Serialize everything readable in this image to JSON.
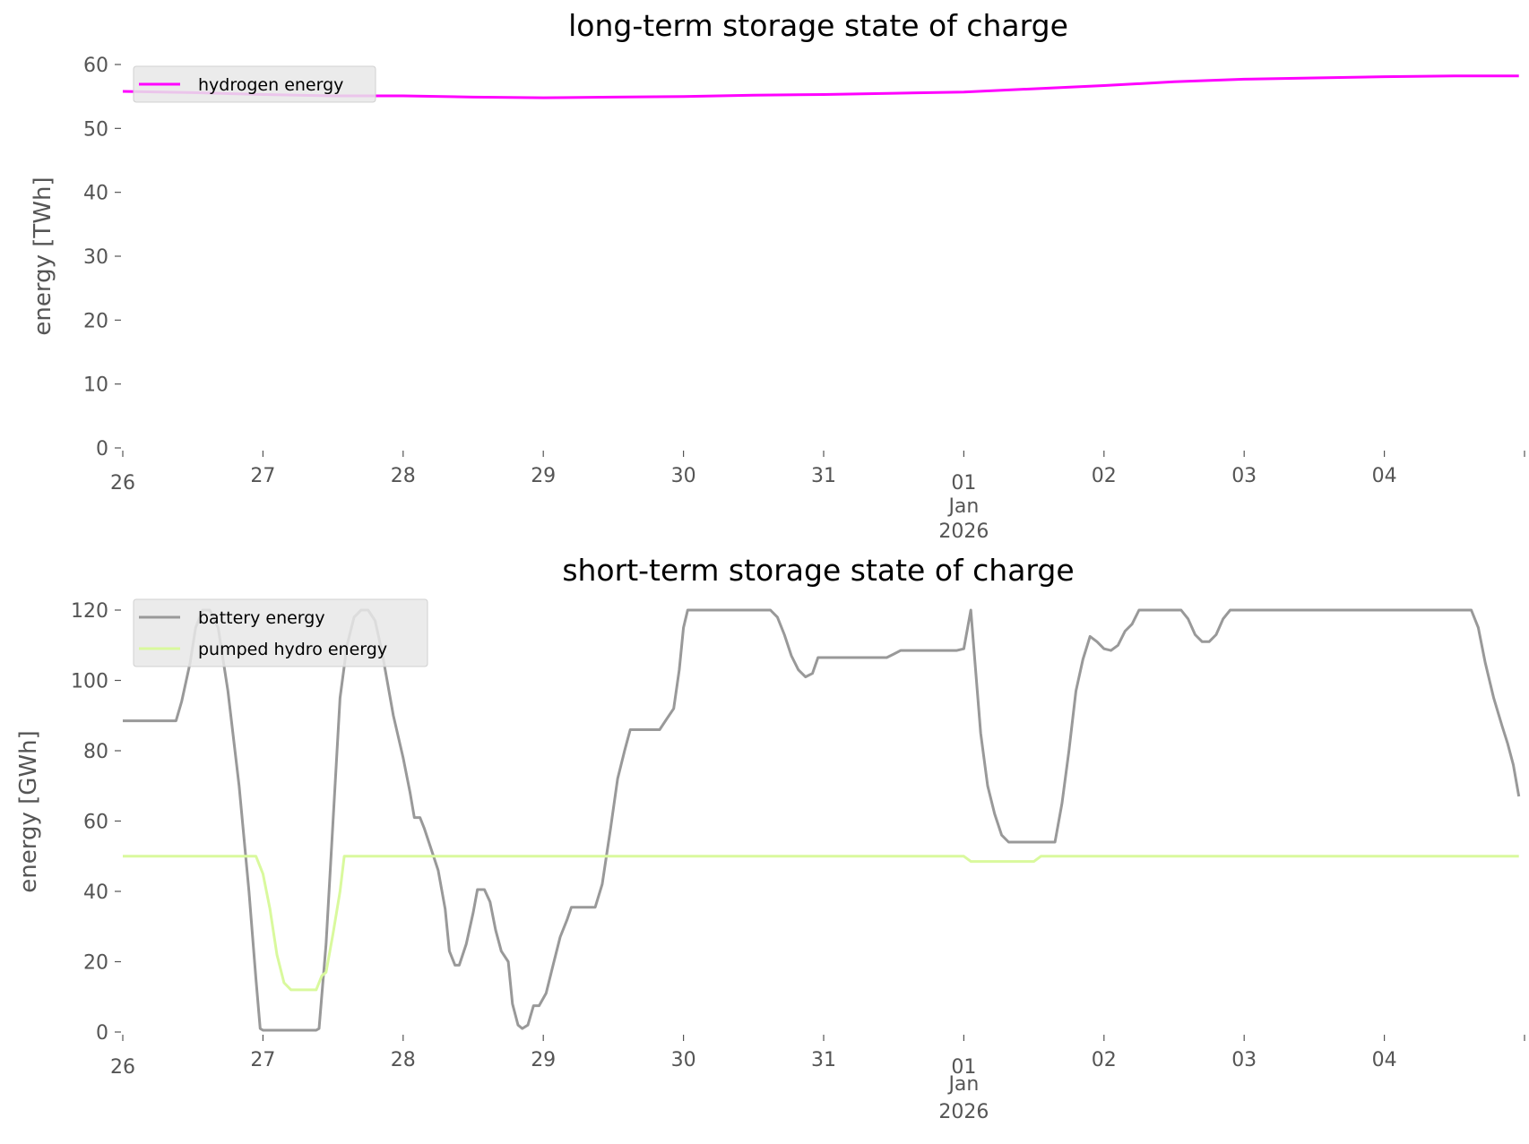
{
  "chart_data": [
    {
      "type": "line",
      "title": "long-term storage state of charge",
      "xlabel": "",
      "ylabel": "energy [TWh]",
      "ylim": [
        0,
        60
      ],
      "yticks": [
        "0",
        "10",
        "20",
        "30",
        "40",
        "50",
        "60"
      ],
      "xticks": [
        "26",
        "27",
        "28",
        "29",
        "30",
        "31",
        "01",
        "02",
        "03",
        "04",
        ""
      ],
      "xtick_sub": [
        "Jan",
        "2026"
      ],
      "x_unit": "days since 2025-12-26",
      "xlim": [
        0,
        9.96
      ],
      "legend_position": "top-left",
      "series": [
        {
          "name": "hydrogen energy",
          "color": "#ff00ff",
          "x": [
            0,
            0.5,
            1,
            1.5,
            2,
            2.5,
            3,
            3.5,
            4,
            4.5,
            5,
            5.5,
            6,
            6.5,
            7,
            7.5,
            8,
            8.5,
            9,
            9.5,
            9.96
          ],
          "y": [
            55.8,
            55.6,
            55.3,
            55.1,
            55.1,
            54.9,
            54.8,
            54.9,
            55.0,
            55.2,
            55.3,
            55.5,
            55.7,
            56.2,
            56.7,
            57.3,
            57.7,
            57.9,
            58.1,
            58.2,
            58.2
          ]
        }
      ]
    },
    {
      "type": "line",
      "title": "short-term storage state of charge",
      "xlabel": "",
      "ylabel": "energy [GWh]",
      "ylim": [
        0,
        120
      ],
      "yticks": [
        "0",
        "20",
        "40",
        "60",
        "80",
        "100",
        "120"
      ],
      "xticks": [
        "26",
        "27",
        "28",
        "29",
        "30",
        "31",
        "01",
        "02",
        "03",
        "04",
        ""
      ],
      "xtick_sub": [
        "Jan",
        "2026"
      ],
      "x_unit": "days since 2025-12-26",
      "xlim": [
        0,
        9.96
      ],
      "legend_position": "top-left",
      "series": [
        {
          "name": "battery energy",
          "color": "#999999",
          "x": [
            0,
            0.38,
            0.42,
            0.48,
            0.52,
            0.57,
            0.62,
            0.68,
            0.75,
            0.83,
            0.9,
            0.95,
            0.98,
            1.0,
            1.38,
            1.4,
            1.45,
            1.5,
            1.55,
            1.6,
            1.65,
            1.7,
            1.75,
            1.8,
            1.85,
            1.93,
            2.0,
            2.05,
            2.08,
            2.12,
            2.15,
            2.2,
            2.25,
            2.3,
            2.33,
            2.37,
            2.4,
            2.45,
            2.5,
            2.53,
            2.58,
            2.62,
            2.66,
            2.7,
            2.75,
            2.78,
            2.82,
            2.85,
            2.89,
            2.93,
            2.97,
            3.02,
            3.07,
            3.12,
            3.17,
            3.2,
            3.37,
            3.42,
            3.48,
            3.53,
            3.58,
            3.62,
            3.83,
            3.88,
            3.93,
            3.97,
            4.0,
            4.03,
            4.62,
            4.67,
            4.72,
            4.77,
            4.82,
            4.87,
            4.92,
            4.96,
            5.45,
            5.5,
            5.55,
            5.95,
            6.0,
            6.05,
            6.08,
            6.12,
            6.17,
            6.22,
            6.27,
            6.32,
            6.65,
            6.7,
            6.75,
            6.8,
            6.85,
            6.9,
            6.95,
            7.0,
            7.05,
            7.1,
            7.15,
            7.2,
            7.25,
            7.55,
            7.6,
            7.65,
            7.7,
            7.75,
            7.8,
            7.85,
            7.9,
            9.62,
            9.67,
            9.72,
            9.78,
            9.84,
            9.88,
            9.92,
            9.96
          ],
          "y": [
            88.5,
            88.5,
            94,
            105,
            115,
            120,
            120,
            115,
            97,
            70,
            40,
            15,
            1,
            0.5,
            0.5,
            1,
            25,
            60,
            95,
            110,
            118,
            120,
            120,
            117,
            108,
            90,
            78,
            68,
            61,
            61,
            58,
            52,
            46,
            35,
            23,
            19,
            19,
            25,
            34,
            40.5,
            40.5,
            37,
            29,
            23,
            20,
            8,
            2,
            1,
            2,
            7.5,
            7.5,
            11,
            19,
            27,
            32,
            35.5,
            35.5,
            42,
            58,
            72,
            80,
            86,
            86,
            89,
            92,
            103,
            115,
            120,
            120,
            118,
            113,
            107,
            103,
            101,
            102,
            106.5,
            106.5,
            107.5,
            108.5,
            108.5,
            109,
            120,
            105,
            85,
            70,
            62,
            56,
            54,
            54,
            65,
            80,
            97,
            106,
            112.5,
            111,
            109,
            108.5,
            110,
            114,
            116,
            120,
            120,
            117.5,
            113,
            111,
            111,
            113,
            117.5,
            120,
            120,
            115,
            105,
            95,
            87,
            82,
            76,
            67
          ]
        },
        {
          "name": "pumped hydro energy",
          "color": "#d9f99d",
          "x": [
            0,
            0.95,
            1.0,
            1.05,
            1.1,
            1.15,
            1.2,
            1.38,
            1.42,
            1.45,
            1.5,
            1.55,
            1.58,
            6.0,
            6.05,
            6.5,
            6.55,
            9.96
          ],
          "y": [
            50,
            50,
            45,
            35,
            22,
            14,
            12,
            12,
            16,
            17,
            28,
            40,
            50,
            50,
            48.5,
            48.5,
            50,
            50
          ]
        }
      ]
    }
  ]
}
